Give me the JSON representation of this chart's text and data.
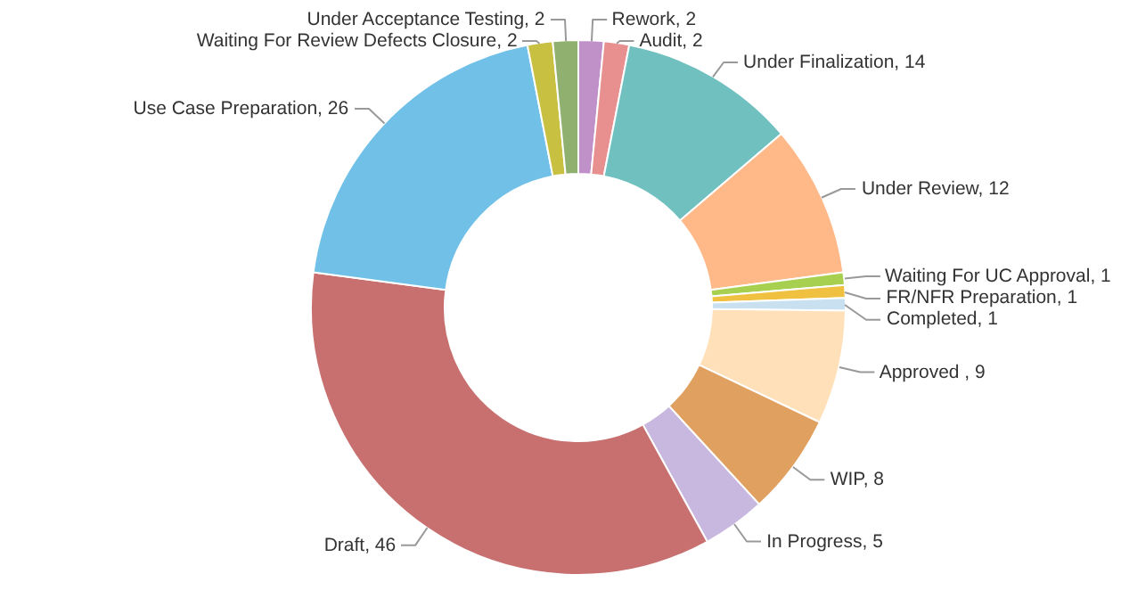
{
  "chart_data": {
    "type": "donut",
    "categories": [
      "Rework, 2",
      "Audit, 2",
      "Under Finalization, 14",
      "Under Review, 12",
      "Waiting For UC Approval, 1",
      "FR/NFR Preparation, 1",
      "Completed, 1",
      "Approved , 9",
      "WIP, 8",
      "In Progress, 5",
      "Draft, 46",
      "Use Case Preparation, 26",
      "Waiting For Review Defects Closure, 2",
      "Under Acceptance Testing, 2"
    ],
    "values": [
      2,
      2,
      14,
      12,
      1,
      1,
      1,
      9,
      8,
      5,
      46,
      26,
      2,
      2
    ],
    "colors": [
      "#c090c8",
      "#e89090",
      "#70c0c0",
      "#ffb888",
      "#a8d050",
      "#f0c040",
      "#c8e0f0",
      "#ffe0b8",
      "#e0a060",
      "#c8b8e0",
      "#c87070",
      "#70c0e8",
      "#c8c040",
      "#90b070"
    ],
    "legend": false
  }
}
